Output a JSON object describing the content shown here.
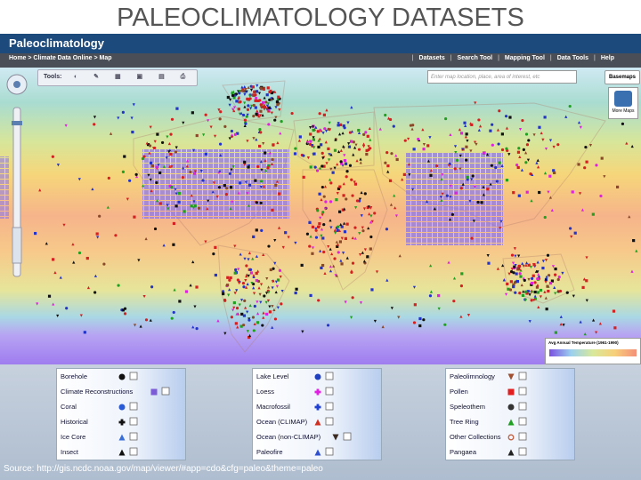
{
  "title": "PALEOCLIMATOLOGY DATASETS",
  "header": {
    "title": "Paleoclimatology",
    "breadcrumb": "Home > Climate Data Online > Map",
    "nav": [
      "Datasets",
      "Search Tool",
      "Mapping Tool",
      "Data Tools",
      "Help"
    ]
  },
  "toolbar": {
    "label": "Tools:",
    "search_placeholder": "Enter map location, place, area of interest, etc",
    "basemaps": "Basemaps",
    "more_maps": "More Maps"
  },
  "map_legend": {
    "title": "Avg Annual Temperature (1961-1990)"
  },
  "legend": {
    "columns": [
      [
        {
          "label": "Borehole",
          "color": "#111111",
          "shape": "circle"
        },
        {
          "label": "Climate Reconstructions",
          "color": "#7b5bd6",
          "shape": "square"
        },
        {
          "label": "Coral",
          "color": "#2a5bd7",
          "shape": "circle"
        },
        {
          "label": "Historical",
          "color": "#111111",
          "shape": "cross"
        },
        {
          "label": "Ice Core",
          "color": "#3a6fd8",
          "shape": "triangle"
        },
        {
          "label": "Insect",
          "color": "#111111",
          "shape": "triangle"
        }
      ],
      [
        {
          "label": "Lake Level",
          "color": "#2040c0",
          "shape": "circle"
        },
        {
          "label": "Loess",
          "color": "#e020e0",
          "shape": "cross"
        },
        {
          "label": "Macrofossil",
          "color": "#2040d0",
          "shape": "cross"
        },
        {
          "label": "Ocean (CLIMAP)",
          "color": "#d03020",
          "shape": "triangle"
        },
        {
          "label": "Ocean (non-CLIMAP)",
          "color": "#3a2a20",
          "shape": "triangle-down"
        },
        {
          "label": "Paleofire",
          "color": "#3050d0",
          "shape": "triangle"
        }
      ],
      [
        {
          "label": "Paleolimnology",
          "color": "#a05030",
          "shape": "triangle-down"
        },
        {
          "label": "Pollen",
          "color": "#e02020",
          "shape": "square"
        },
        {
          "label": "Speleothem",
          "color": "#333333",
          "shape": "circle"
        },
        {
          "label": "Tree Ring",
          "color": "#20a020",
          "shape": "triangle"
        },
        {
          "label": "Other Collections",
          "color": "#c06040",
          "shape": "ring"
        },
        {
          "label": "Pangaea",
          "color": "#222222",
          "shape": "triangle"
        }
      ]
    ]
  },
  "source": "Source: http://gis.ncdc.noaa.gov/map/viewer/#app=cdo&cfg=paleo&theme=paleo"
}
